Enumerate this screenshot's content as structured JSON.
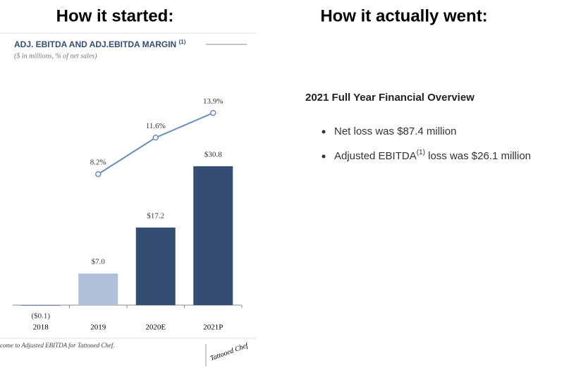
{
  "header": {
    "left": "How it started:",
    "right": "How it actually went:"
  },
  "chart_data": {
    "type": "bar",
    "title": "ADJ. EBITDA AND ADJ.EBITDA MARGIN",
    "title_note": "(1)",
    "subtitle": "($ in millions, % of net sales)",
    "categories": [
      "2018",
      "2019",
      "2020E",
      "2021P"
    ],
    "series": [
      {
        "type": "bar",
        "colors": [
          "#344d72",
          "#b0c0d9",
          "#344d72",
          "#344d72"
        ],
        "values": [
          -0.1,
          7.0,
          17.2,
          30.8
        ],
        "value_labels": [
          "($0.1)",
          "$7.0",
          "$17.2",
          "$30.8"
        ]
      },
      {
        "type": "line",
        "axis": "y2",
        "color": "#6a8cbf",
        "values": [
          null,
          8.2,
          11.6,
          13.9
        ],
        "value_labels": [
          null,
          "8.2%",
          "11.6%",
          "13.9%"
        ]
      }
    ],
    "ylim": [
      0,
      50
    ],
    "y2lim": [
      -4,
      17
    ],
    "footnote": "come to Adjusted EBITDA for Tattooed Chef.",
    "logo": "Tattooed Chef"
  },
  "overview": {
    "title": "2021 Full Year Financial Overview",
    "bullets": [
      {
        "text": "Net loss was $87.4 million"
      },
      {
        "text": "Adjusted EBITDA",
        "note": "(1)",
        "rest": " loss was $26.1 million"
      }
    ]
  }
}
